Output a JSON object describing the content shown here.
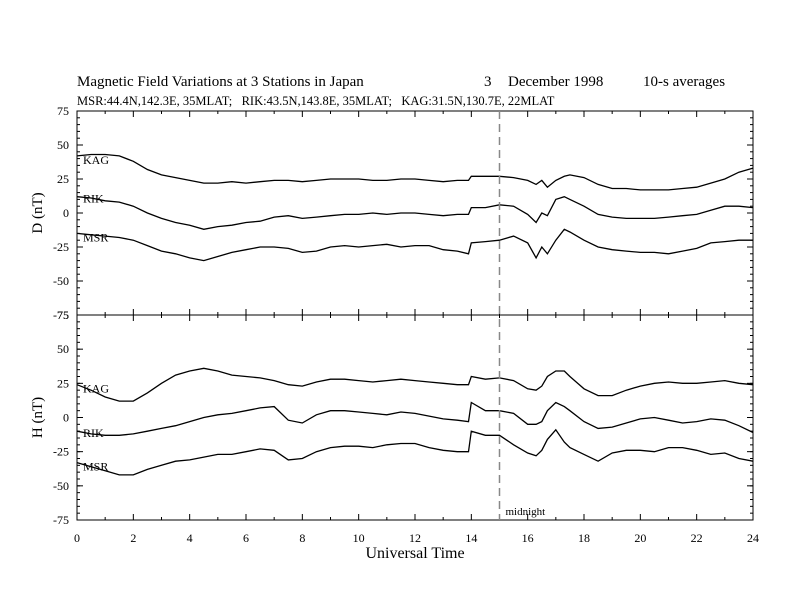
{
  "header": {
    "title_main": "Magnetic Field Variations at 3 Stations in Japan",
    "title_day": "3",
    "title_month_year": "December 1998",
    "title_avg": "10-s averages",
    "subtitle": "MSR:44.4N,142.3E, 35MLAT;   RIK:43.5N,143.8E, 35MLAT;   KAG:31.5N,130.7E, 22MLAT"
  },
  "chart_data": [
    {
      "type": "line",
      "panel": "D",
      "ylabel": "D (nT)",
      "ylim": [
        -75,
        75
      ],
      "yticks": [
        75,
        50,
        25,
        0,
        -25,
        -50,
        -75
      ],
      "xlim": [
        0,
        24
      ],
      "series": [
        {
          "name": "KAG",
          "x": [
            0,
            0.5,
            1,
            1.5,
            2,
            2.5,
            3,
            3.5,
            4,
            4.5,
            5,
            5.5,
            6,
            6.5,
            7,
            7.5,
            8,
            8.5,
            9,
            9.5,
            10,
            10.5,
            11,
            11.5,
            12,
            12.5,
            13,
            13.5,
            13.9,
            14,
            14.5,
            15,
            15.5,
            16,
            16.3,
            16.5,
            16.7,
            17,
            17.3,
            17.5,
            18,
            18.5,
            19,
            19.5,
            20,
            20.5,
            21,
            21.5,
            22,
            22.5,
            23,
            23.5,
            24
          ],
          "values": [
            42,
            43,
            43,
            42,
            38,
            32,
            28,
            26,
            24,
            22,
            22,
            23,
            22,
            23,
            24,
            24,
            23,
            24,
            25,
            25,
            25,
            24,
            24,
            25,
            25,
            24,
            23,
            24,
            24,
            27,
            27,
            27,
            26,
            24,
            21,
            24,
            19,
            24,
            27,
            28,
            26,
            21,
            18,
            18,
            17,
            17,
            17,
            18,
            19,
            22,
            25,
            30,
            33
          ]
        },
        {
          "name": "RIK",
          "x": [
            0,
            0.5,
            1,
            1.5,
            2,
            2.5,
            3,
            3.5,
            4,
            4.5,
            5,
            5.5,
            6,
            6.5,
            7,
            7.5,
            8,
            8.5,
            9,
            9.5,
            10,
            10.5,
            11,
            11.5,
            12,
            12.5,
            13,
            13.5,
            13.9,
            14,
            14.5,
            15,
            15.5,
            16,
            16.3,
            16.5,
            16.7,
            17,
            17.3,
            17.5,
            18,
            18.5,
            19,
            19.5,
            20,
            20.5,
            21,
            21.5,
            22,
            22.5,
            23,
            23.5,
            24
          ],
          "values": [
            12,
            11,
            9,
            8,
            5,
            0,
            -4,
            -7,
            -9,
            -12,
            -10,
            -9,
            -7,
            -6,
            -3,
            -2,
            -4,
            -3,
            -2,
            -1,
            -1,
            0,
            -1,
            0,
            0,
            -1,
            -2,
            -1,
            -1,
            4,
            4,
            6,
            5,
            -1,
            -7,
            0,
            -2,
            10,
            12,
            10,
            5,
            -1,
            -3,
            -4,
            -4,
            -4,
            -3,
            -2,
            -1,
            2,
            5,
            5,
            4
          ]
        },
        {
          "name": "MSR",
          "x": [
            0,
            0.5,
            1,
            1.5,
            2,
            2.5,
            3,
            3.5,
            4,
            4.5,
            5,
            5.5,
            6,
            6.5,
            7,
            7.5,
            8,
            8.5,
            9,
            9.5,
            10,
            10.5,
            11,
            11.5,
            12,
            12.5,
            13,
            13.5,
            13.9,
            14,
            14.5,
            15,
            15.5,
            16,
            16.3,
            16.5,
            16.7,
            17,
            17.3,
            17.5,
            18,
            18.5,
            19,
            19.5,
            20,
            20.5,
            21,
            21.5,
            22,
            22.5,
            23,
            23.5,
            24
          ],
          "values": [
            -15,
            -16,
            -17,
            -18,
            -20,
            -24,
            -28,
            -30,
            -33,
            -35,
            -32,
            -29,
            -27,
            -25,
            -25,
            -26,
            -29,
            -28,
            -25,
            -24,
            -25,
            -24,
            -23,
            -25,
            -24,
            -24,
            -27,
            -28,
            -30,
            -22,
            -21,
            -20,
            -17,
            -22,
            -33,
            -25,
            -30,
            -20,
            -12,
            -14,
            -20,
            -25,
            -27,
            -28,
            -29,
            -29,
            -30,
            -28,
            -26,
            -22,
            -21,
            -20,
            -20
          ]
        }
      ]
    },
    {
      "type": "line",
      "panel": "H",
      "ylabel": "H (nT)",
      "ylim": [
        -75,
        75
      ],
      "yticks": [
        75,
        50,
        25,
        0,
        -25,
        -50,
        -75
      ],
      "xlim": [
        0,
        24
      ],
      "xlabel": "Universal Time",
      "xticks": [
        0,
        2,
        4,
        6,
        8,
        10,
        12,
        14,
        16,
        18,
        20,
        22,
        24
      ],
      "series": [
        {
          "name": "KAG",
          "x": [
            0,
            0.5,
            1,
            1.5,
            2,
            2.5,
            3,
            3.5,
            4,
            4.5,
            5,
            5.5,
            6,
            6.5,
            7,
            7.5,
            8,
            8.5,
            9,
            9.5,
            10,
            10.5,
            11,
            11.5,
            12,
            12.5,
            13,
            13.5,
            13.9,
            14,
            14.5,
            15,
            15.5,
            16,
            16.3,
            16.5,
            16.7,
            17,
            17.3,
            17.5,
            18,
            18.5,
            19,
            19.5,
            20,
            20.5,
            21,
            21.5,
            22,
            22.5,
            23,
            23.5,
            24
          ],
          "values": [
            24,
            20,
            15,
            12,
            12,
            18,
            25,
            31,
            34,
            36,
            34,
            31,
            30,
            29,
            27,
            24,
            23,
            26,
            28,
            28,
            27,
            26,
            27,
            28,
            27,
            26,
            25,
            24,
            24,
            30,
            28,
            29,
            27,
            21,
            20,
            23,
            30,
            34,
            34,
            30,
            21,
            16,
            16,
            20,
            23,
            25,
            26,
            25,
            25,
            26,
            27,
            25,
            24
          ]
        },
        {
          "name": "RIK",
          "x": [
            0,
            0.5,
            1,
            1.5,
            2,
            2.5,
            3,
            3.5,
            4,
            4.5,
            5,
            5.5,
            6,
            6.5,
            7,
            7.5,
            8,
            8.5,
            9,
            9.5,
            10,
            10.5,
            11,
            11.5,
            12,
            12.5,
            13,
            13.5,
            13.9,
            14,
            14.5,
            15,
            15.5,
            16,
            16.3,
            16.5,
            16.7,
            17,
            17.3,
            17.5,
            18,
            18.5,
            19,
            19.5,
            20,
            20.5,
            21,
            21.5,
            22,
            22.5,
            23,
            23.5,
            24
          ],
          "values": [
            -10,
            -12,
            -13,
            -13,
            -12,
            -10,
            -8,
            -6,
            -3,
            0,
            2,
            3,
            5,
            7,
            8,
            -2,
            -4,
            2,
            5,
            5,
            4,
            3,
            2,
            4,
            3,
            1,
            -1,
            -2,
            -3,
            11,
            5,
            5,
            3,
            -5,
            -5,
            -3,
            5,
            11,
            8,
            5,
            -3,
            -8,
            -7,
            -4,
            -1,
            0,
            -2,
            -4,
            -3,
            -1,
            -2,
            -6,
            -11
          ]
        },
        {
          "name": "MSR",
          "x": [
            0,
            0.5,
            1,
            1.5,
            2,
            2.5,
            3,
            3.5,
            4,
            4.5,
            5,
            5.5,
            6,
            6.5,
            7,
            7.5,
            8,
            8.5,
            9,
            9.5,
            10,
            10.5,
            11,
            11.5,
            12,
            12.5,
            13,
            13.5,
            13.9,
            14,
            14.5,
            15,
            15.5,
            16,
            16.3,
            16.5,
            16.7,
            17,
            17.3,
            17.5,
            18,
            18.5,
            19,
            19.5,
            20,
            20.5,
            21,
            21.5,
            22,
            22.5,
            23,
            23.5,
            24
          ],
          "values": [
            -33,
            -36,
            -39,
            -42,
            -42,
            -38,
            -35,
            -32,
            -31,
            -29,
            -27,
            -27,
            -25,
            -23,
            -24,
            -31,
            -30,
            -25,
            -22,
            -21,
            -21,
            -22,
            -20,
            -19,
            -19,
            -22,
            -24,
            -25,
            -25,
            -10,
            -13,
            -13,
            -20,
            -26,
            -28,
            -24,
            -16,
            -9,
            -18,
            -22,
            -27,
            -32,
            -26,
            -24,
            -24,
            -25,
            -22,
            -22,
            -24,
            -27,
            -26,
            -30,
            -32
          ]
        }
      ]
    }
  ],
  "annotations": {
    "midnight_label": "midnight",
    "midnight_ut": 15
  }
}
